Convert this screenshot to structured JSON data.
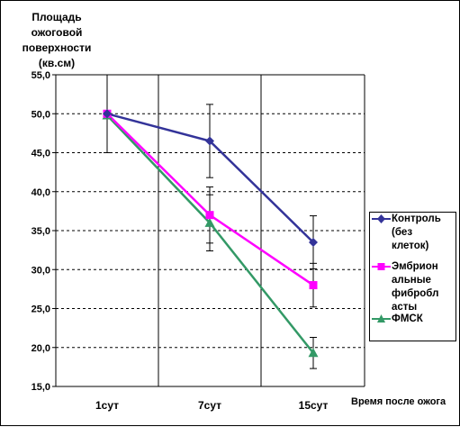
{
  "chart_data": {
    "type": "line",
    "title": "",
    "ylabel": "Площадь ожоговой поверхности (кв.см)",
    "xlabel": "Время после ожога",
    "categories": [
      "1сут",
      "7сут",
      "15сут"
    ],
    "ylim": [
      15,
      55
    ],
    "ytick_labels": [
      "15,0",
      "20,0",
      "25,0",
      "30,0",
      "35,0",
      "40,0",
      "45,0",
      "50,0",
      "55,0"
    ],
    "grid": "horizontal dashed, vertical at categories",
    "legend_position": "right",
    "series": [
      {
        "name": "Контроль (без клеток)",
        "values": [
          50.0,
          46.5,
          33.5
        ],
        "errors": [
          5.0,
          4.7,
          3.4
        ],
        "color": "#333399",
        "marker": "diamond"
      },
      {
        "name": "Эмбриональные фибробласты",
        "values": [
          50.0,
          37.0,
          28.0
        ],
        "errors": [
          0,
          3.6,
          2.8
        ],
        "color": "#ff00ff",
        "marker": "square"
      },
      {
        "name": "ФМСК",
        "values": [
          49.8,
          36.0,
          19.3
        ],
        "errors": [
          0,
          3.6,
          2.0
        ],
        "color": "#339966",
        "marker": "triangle"
      }
    ]
  },
  "legend": {
    "items": [
      {
        "text": "Контроль\n(без\nклеток)"
      },
      {
        "text": "Эмбрион\nальные\nфибробл\nасты"
      },
      {
        "text": "ФМСК"
      }
    ]
  }
}
